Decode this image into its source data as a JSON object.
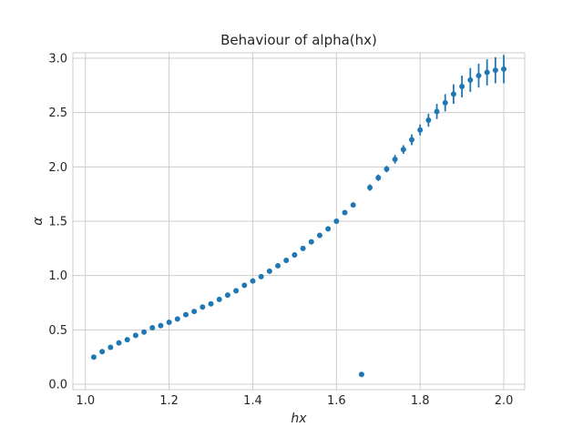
{
  "chart_data": {
    "type": "scatter",
    "title": "Behaviour of alpha(hx)",
    "xlabel": "hx",
    "ylabel": "α",
    "xlim": [
      0.97,
      2.05
    ],
    "ylim": [
      -0.05,
      3.05
    ],
    "xticks": [
      "1.0",
      "1.2",
      "1.4",
      "1.6",
      "1.8",
      "2.0"
    ],
    "xtick_values": [
      1.0,
      1.2,
      1.4,
      1.6,
      1.8,
      2.0
    ],
    "yticks": [
      "0.0",
      "0.5",
      "1.0",
      "1.5",
      "2.0",
      "2.5",
      "3.0"
    ],
    "ytick_values": [
      0.0,
      0.5,
      1.0,
      1.5,
      2.0,
      2.5,
      3.0
    ],
    "grid": true,
    "color": "#1f77b4",
    "series": [
      {
        "x": [
          1.02,
          1.04,
          1.06,
          1.08,
          1.1,
          1.12,
          1.14,
          1.16,
          1.18,
          1.2,
          1.22,
          1.24,
          1.26,
          1.28,
          1.3,
          1.32,
          1.34,
          1.36,
          1.38,
          1.4,
          1.42,
          1.44,
          1.46,
          1.48,
          1.5,
          1.52,
          1.54,
          1.56,
          1.58,
          1.6,
          1.62,
          1.64,
          1.66,
          1.68,
          1.7,
          1.72,
          1.74,
          1.76,
          1.78,
          1.8,
          1.82,
          1.84,
          1.86,
          1.88,
          1.9,
          1.92,
          1.94,
          1.96,
          1.98,
          2.0
        ],
        "y": [
          0.25,
          0.3,
          0.34,
          0.38,
          0.41,
          0.45,
          0.48,
          0.52,
          0.54,
          0.57,
          0.6,
          0.64,
          0.67,
          0.71,
          0.74,
          0.78,
          0.82,
          0.86,
          0.91,
          0.95,
          0.99,
          1.04,
          1.09,
          1.14,
          1.19,
          1.25,
          1.31,
          1.37,
          1.43,
          1.5,
          1.58,
          1.65,
          0.09,
          1.81,
          1.9,
          1.98,
          2.07,
          2.16,
          2.25,
          2.34,
          2.43,
          2.51,
          2.59,
          2.67,
          2.74,
          2.8,
          2.84,
          2.87,
          2.89,
          2.9
        ],
        "yerr": [
          0,
          0,
          0,
          0,
          0,
          0,
          0,
          0,
          0,
          0,
          0,
          0,
          0,
          0,
          0,
          0,
          0,
          0,
          0,
          0,
          0,
          0,
          0,
          0,
          0,
          0,
          0,
          0,
          0,
          0,
          0,
          0.02,
          0,
          0.03,
          0.03,
          0.03,
          0.04,
          0.04,
          0.05,
          0.05,
          0.06,
          0.07,
          0.08,
          0.09,
          0.1,
          0.11,
          0.11,
          0.12,
          0.12,
          0.13
        ]
      }
    ]
  }
}
